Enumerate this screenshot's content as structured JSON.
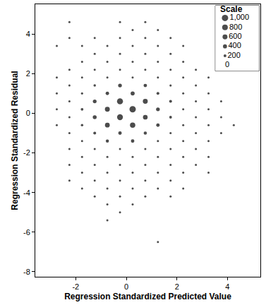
{
  "chart_data": {
    "type": "scatter",
    "x_label": "Regression Standardized Predicted Value",
    "y_label": "Regression Standardized Residual",
    "color": "#000000",
    "marker": "circle",
    "grid": false,
    "xlim": [
      -3.6,
      5.3
    ],
    "ylim": [
      -8.25,
      5.5
    ],
    "xticks": [
      -2,
      0,
      2,
      4
    ],
    "yticks": [
      -8,
      -6,
      -4,
      -2,
      0,
      2,
      4
    ],
    "size_scale": {
      "title": "Scale",
      "ticks": [
        {
          "value": 1000,
          "label": "1,000"
        },
        800,
        600,
        400,
        200,
        0
      ]
    },
    "points": [
      [
        -2.75,
        3.4,
        5
      ],
      [
        -2.75,
        1.8,
        5
      ],
      [
        -2.75,
        1.0,
        8
      ],
      [
        -2.75,
        0.2,
        10
      ],
      [
        -2.75,
        -0.6,
        8
      ],
      [
        -2.25,
        4.6,
        3
      ],
      [
        -2.25,
        3.8,
        4
      ],
      [
        -2.25,
        2.2,
        15
      ],
      [
        -2.25,
        1.4,
        40
      ],
      [
        -2.25,
        0.6,
        60
      ],
      [
        -2.25,
        -0.2,
        60
      ],
      [
        -2.25,
        -1.0,
        40
      ],
      [
        -2.25,
        -1.8,
        20
      ],
      [
        -2.25,
        -2.6,
        8
      ],
      [
        -2.25,
        -3.4,
        4
      ],
      [
        -1.75,
        3.4,
        5
      ],
      [
        -1.75,
        2.6,
        10
      ],
      [
        -1.75,
        1.8,
        40
      ],
      [
        -1.75,
        1.0,
        120
      ],
      [
        -1.75,
        0.2,
        180
      ],
      [
        -1.75,
        -0.6,
        150
      ],
      [
        -1.75,
        -1.4,
        80
      ],
      [
        -1.75,
        -2.2,
        30
      ],
      [
        -1.75,
        -3.0,
        10
      ],
      [
        -1.75,
        -3.8,
        4
      ],
      [
        -1.25,
        3.8,
        3
      ],
      [
        -1.25,
        3.0,
        8
      ],
      [
        -1.25,
        2.2,
        30
      ],
      [
        -1.25,
        1.4,
        150
      ],
      [
        -1.25,
        0.6,
        350
      ],
      [
        -1.25,
        -0.2,
        380
      ],
      [
        -1.25,
        -1.0,
        200
      ],
      [
        -1.25,
        -1.8,
        60
      ],
      [
        -1.25,
        -2.6,
        20
      ],
      [
        -1.25,
        -3.4,
        6
      ],
      [
        -1.25,
        -4.2,
        3
      ],
      [
        -0.75,
        3.4,
        4
      ],
      [
        -0.75,
        2.6,
        15
      ],
      [
        -0.75,
        1.8,
        60
      ],
      [
        -0.75,
        1.0,
        300
      ],
      [
        -0.75,
        0.2,
        600
      ],
      [
        -0.75,
        -0.6,
        560
      ],
      [
        -0.75,
        -1.4,
        250
      ],
      [
        -0.75,
        -2.2,
        70
      ],
      [
        -0.75,
        -3.0,
        20
      ],
      [
        -0.75,
        -3.8,
        8
      ],
      [
        -0.75,
        -4.6,
        4
      ],
      [
        -0.75,
        -5.4,
        2
      ],
      [
        -0.25,
        4.6,
        3
      ],
      [
        -0.25,
        3.8,
        6
      ],
      [
        -0.25,
        3.0,
        20
      ],
      [
        -0.25,
        2.2,
        80
      ],
      [
        -0.25,
        1.4,
        350
      ],
      [
        -0.25,
        0.6,
        900
      ],
      [
        -0.25,
        -0.2,
        850
      ],
      [
        -0.25,
        -1.0,
        300
      ],
      [
        -0.25,
        -1.8,
        80
      ],
      [
        -0.25,
        -2.6,
        25
      ],
      [
        -0.25,
        -3.4,
        8
      ],
      [
        -0.25,
        -4.2,
        4
      ],
      [
        -0.25,
        -5.0,
        2
      ],
      [
        0.25,
        4.2,
        3
      ],
      [
        0.25,
        3.4,
        8
      ],
      [
        0.25,
        2.6,
        25
      ],
      [
        0.25,
        1.8,
        90
      ],
      [
        0.25,
        1.0,
        400
      ],
      [
        0.25,
        0.2,
        1000
      ],
      [
        0.25,
        -0.6,
        700
      ],
      [
        0.25,
        -1.4,
        300
      ],
      [
        0.25,
        -2.2,
        80
      ],
      [
        0.25,
        -3.0,
        25
      ],
      [
        0.25,
        -3.8,
        8
      ],
      [
        0.25,
        -4.6,
        3
      ],
      [
        0.75,
        4.6,
        2
      ],
      [
        0.75,
        3.8,
        6
      ],
      [
        0.75,
        3.0,
        15
      ],
      [
        0.75,
        2.2,
        60
      ],
      [
        0.75,
        1.4,
        300
      ],
      [
        0.75,
        0.6,
        600
      ],
      [
        0.75,
        -0.2,
        550
      ],
      [
        0.75,
        -1.0,
        250
      ],
      [
        0.75,
        -1.8,
        60
      ],
      [
        0.75,
        -2.6,
        20
      ],
      [
        0.75,
        -3.4,
        6
      ],
      [
        0.75,
        -4.2,
        2
      ],
      [
        1.25,
        4.2,
        2
      ],
      [
        1.25,
        3.4,
        5
      ],
      [
        1.25,
        2.6,
        15
      ],
      [
        1.25,
        1.8,
        50
      ],
      [
        1.25,
        1.0,
        200
      ],
      [
        1.25,
        0.2,
        350
      ],
      [
        1.25,
        -0.6,
        300
      ],
      [
        1.25,
        -1.4,
        120
      ],
      [
        1.25,
        -2.2,
        40
      ],
      [
        1.25,
        -3.0,
        12
      ],
      [
        1.25,
        -3.8,
        4
      ],
      [
        1.25,
        -6.5,
        1
      ],
      [
        1.75,
        3.8,
        3
      ],
      [
        1.75,
        3.0,
        8
      ],
      [
        1.75,
        2.2,
        30
      ],
      [
        1.75,
        1.4,
        120
      ],
      [
        1.75,
        0.6,
        200
      ],
      [
        1.75,
        -0.2,
        180
      ],
      [
        1.75,
        -1.0,
        80
      ],
      [
        1.75,
        -1.8,
        25
      ],
      [
        1.75,
        -2.6,
        8
      ],
      [
        1.75,
        -3.4,
        3
      ],
      [
        1.75,
        -4.2,
        2
      ],
      [
        2.25,
        3.4,
        3
      ],
      [
        2.25,
        2.6,
        6
      ],
      [
        2.25,
        1.8,
        20
      ],
      [
        2.25,
        1.0,
        60
      ],
      [
        2.25,
        0.2,
        90
      ],
      [
        2.25,
        -0.6,
        80
      ],
      [
        2.25,
        -1.4,
        40
      ],
      [
        2.25,
        -2.2,
        12
      ],
      [
        2.25,
        -3.0,
        4
      ],
      [
        2.25,
        -3.8,
        2
      ],
      [
        2.75,
        2.2,
        4
      ],
      [
        2.75,
        1.4,
        10
      ],
      [
        2.75,
        0.6,
        25
      ],
      [
        2.75,
        -0.2,
        30
      ],
      [
        2.75,
        -1.0,
        15
      ],
      [
        2.75,
        -1.8,
        6
      ],
      [
        2.75,
        -2.6,
        2
      ],
      [
        3.25,
        1.8,
        2
      ],
      [
        3.25,
        1.0,
        5
      ],
      [
        3.25,
        0.2,
        8
      ],
      [
        3.25,
        -0.6,
        10
      ],
      [
        3.25,
        -1.4,
        6
      ],
      [
        3.25,
        -2.2,
        3
      ],
      [
        3.25,
        -3.0,
        2
      ],
      [
        3.75,
        0.6,
        2
      ],
      [
        3.75,
        -0.2,
        3
      ],
      [
        3.75,
        -1.0,
        2
      ],
      [
        4.25,
        -0.6,
        1
      ]
    ]
  }
}
